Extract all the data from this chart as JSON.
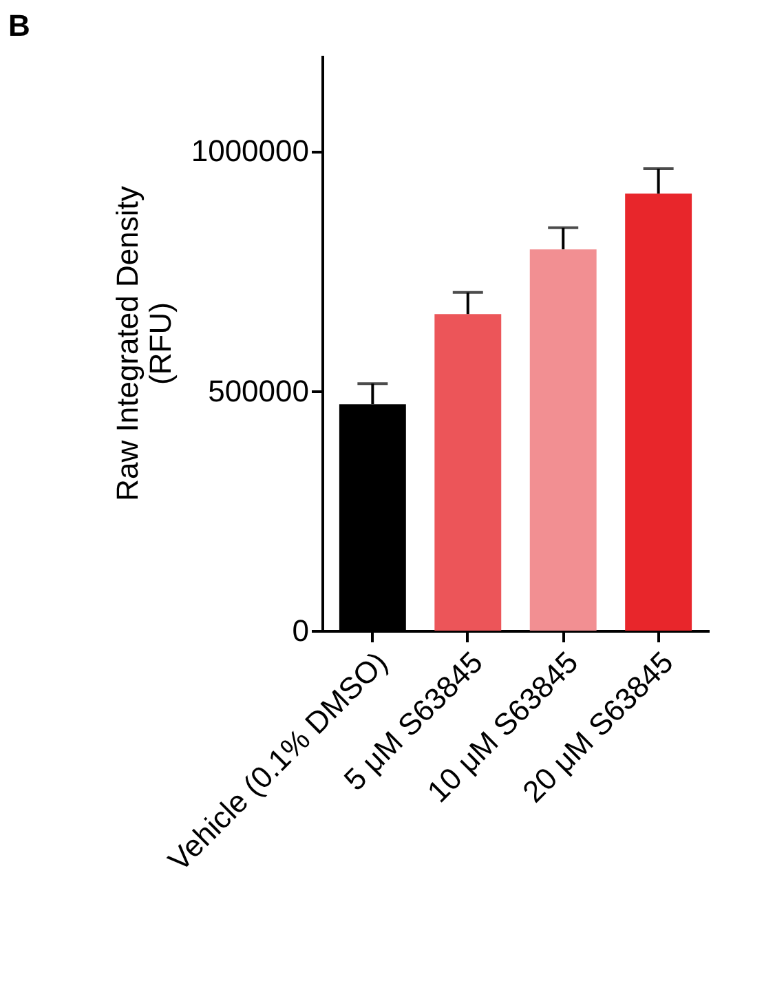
{
  "chart_data": {
    "type": "bar",
    "ylabel": "Raw Integrated Density\n(RFU)",
    "annotations": [
      "B"
    ],
    "categories": [
      "Vehicle (0.1% DMSO)",
      "5 μM S63845",
      "10 μM S63845",
      "20 μM S63845"
    ],
    "values": [
      472000,
      660000,
      795000,
      911000
    ],
    "colors": [
      "#000000",
      "#ec5559",
      "#f28f92",
      "#e8262b"
    ],
    "errors": [
      [
        472000,
        515000
      ],
      [
        660000,
        705000
      ],
      [
        795000,
        840000
      ],
      [
        911000,
        963000
      ]
    ],
    "ylim": [
      0,
      1200000
    ],
    "yticks": [
      0,
      500000,
      1000000
    ],
    "grid": false
  }
}
